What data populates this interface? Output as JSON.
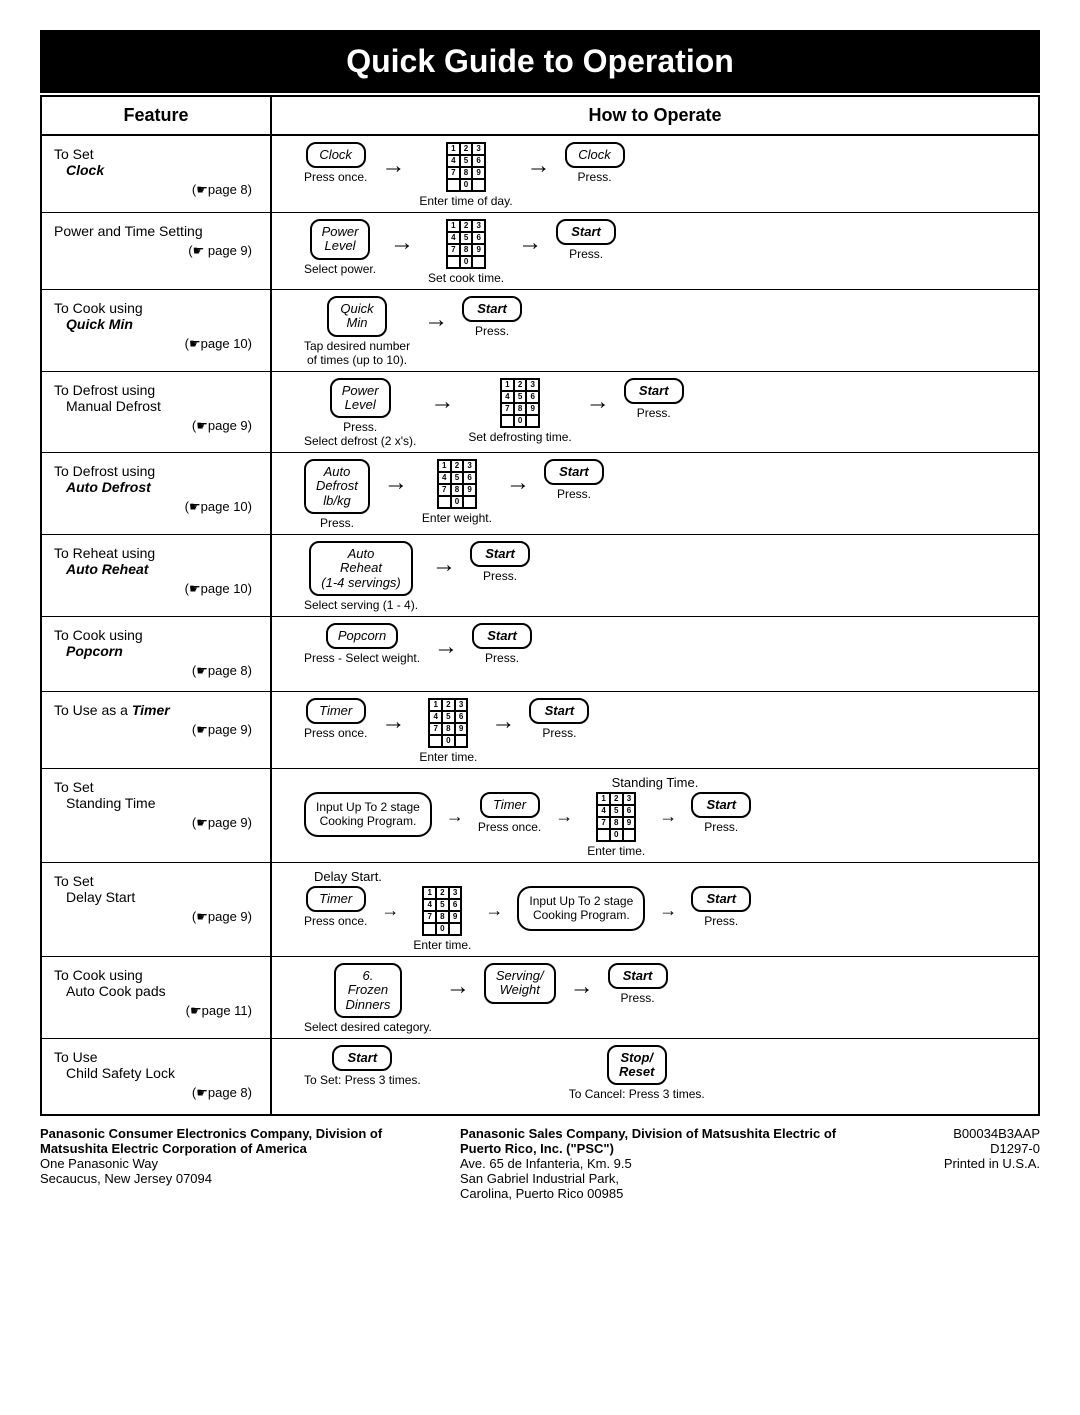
{
  "title": "Quick Guide to Operation",
  "headers": {
    "feature": "Feature",
    "howto": "How to Operate"
  },
  "rows": [
    {
      "feat_pre": "To Set ",
      "feat_bold": "Clock",
      "feat_post": "",
      "page": "page 8",
      "steps": [
        {
          "type": "btn",
          "label": "Clock",
          "caption": "Press once."
        },
        {
          "type": "arrow"
        },
        {
          "type": "keypad",
          "caption": "Enter time of day."
        },
        {
          "type": "arrow"
        },
        {
          "type": "btn",
          "label": "Clock",
          "caption": "Press."
        }
      ]
    },
    {
      "feat_pre": "Power and Time Setting",
      "feat_bold": "",
      "feat_post": "",
      "page": " page 9",
      "steps": [
        {
          "type": "btn",
          "label": "Power\nLevel",
          "caption": "Select power."
        },
        {
          "type": "arrow"
        },
        {
          "type": "keypad",
          "caption": "Set cook time."
        },
        {
          "type": "arrow"
        },
        {
          "type": "btn",
          "label": "Start",
          "bold": true,
          "caption": "Press."
        }
      ]
    },
    {
      "feat_pre": "To Cook using",
      "feat_bold": "Quick Min",
      "feat_post": "",
      "page": "page 10",
      "steps": [
        {
          "type": "btn",
          "label": "Quick\nMin",
          "caption": "Tap desired number\nof times (up to 10)."
        },
        {
          "type": "arrow"
        },
        {
          "type": "btn",
          "label": "Start",
          "bold": true,
          "caption": "Press."
        }
      ]
    },
    {
      "feat_pre": "To Defrost using",
      "feat_bold": "",
      "feat_post": "Manual Defrost",
      "page": "page 9",
      "steps": [
        {
          "type": "btn",
          "label": "Power\nLevel",
          "caption": "Press.\nSelect defrost (2 x's)."
        },
        {
          "type": "arrow"
        },
        {
          "type": "keypad",
          "caption": "Set defrosting time."
        },
        {
          "type": "arrow"
        },
        {
          "type": "btn",
          "label": "Start",
          "bold": true,
          "caption": "Press."
        }
      ]
    },
    {
      "feat_pre": "To Defrost using",
      "feat_bold": "Auto Defrost",
      "feat_post": "",
      "page": "page 10",
      "steps": [
        {
          "type": "btn",
          "label": "Auto\nDefrost\nlb/kg",
          "caption": "Press."
        },
        {
          "type": "arrow"
        },
        {
          "type": "keypad",
          "caption": "Enter weight."
        },
        {
          "type": "arrow"
        },
        {
          "type": "btn",
          "label": "Start",
          "bold": true,
          "caption": "Press."
        }
      ]
    },
    {
      "feat_pre": "To Reheat using",
      "feat_bold": "Auto Reheat",
      "feat_post": "",
      "page": "page 10",
      "steps": [
        {
          "type": "btn",
          "label": "Auto\nReheat\n(1-4 servings)",
          "caption": "Select serving (1 - 4)."
        },
        {
          "type": "arrow"
        },
        {
          "type": "btn",
          "label": "Start",
          "bold": true,
          "caption": "Press."
        }
      ]
    },
    {
      "feat_pre": "To Cook using",
      "feat_bold": "Popcorn",
      "feat_post": "",
      "page": "page 8",
      "steps": [
        {
          "type": "btn",
          "label": "Popcorn",
          "caption": "Press - Select weight."
        },
        {
          "type": "arrow"
        },
        {
          "type": "btn",
          "label": "Start",
          "bold": true,
          "caption": "Press."
        }
      ]
    },
    {
      "feat_pre": "To Use as a ",
      "feat_bold": "Timer",
      "feat_post": "",
      "inline": true,
      "page": "page 9",
      "steps": [
        {
          "type": "btn",
          "label": "Timer",
          "caption": "Press once."
        },
        {
          "type": "arrow"
        },
        {
          "type": "keypad",
          "caption": "Enter time."
        },
        {
          "type": "arrow"
        },
        {
          "type": "btn",
          "label": "Start",
          "bold": true,
          "caption": "Press."
        }
      ]
    },
    {
      "feat_pre": "To Set",
      "feat_bold": "",
      "feat_post": "Standing Time",
      "page": "page 9",
      "section": "Standing Time.",
      "steps": [
        {
          "type": "note",
          "label": "Input Up To 2 stage\nCooking Program."
        },
        {
          "type": "arrow-sm"
        },
        {
          "type": "btn",
          "label": "Timer",
          "caption": "Press once."
        },
        {
          "type": "arrow-sm"
        },
        {
          "type": "keypad",
          "caption": "Enter time."
        },
        {
          "type": "arrow-sm"
        },
        {
          "type": "btn",
          "label": "Start",
          "bold": true,
          "caption": "Press."
        }
      ]
    },
    {
      "feat_pre": "To Set",
      "feat_bold": "",
      "feat_post": "Delay Start",
      "page": "page 9",
      "section": "Delay Start.",
      "steps": [
        {
          "type": "btn",
          "label": "Timer",
          "caption": "Press once."
        },
        {
          "type": "arrow-sm"
        },
        {
          "type": "keypad",
          "caption": "Enter time."
        },
        {
          "type": "arrow-sm"
        },
        {
          "type": "note",
          "label": "Input Up To 2 stage\nCooking Program."
        },
        {
          "type": "arrow-sm"
        },
        {
          "type": "btn",
          "label": "Start",
          "bold": true,
          "caption": "Press."
        }
      ]
    },
    {
      "feat_pre": "To Cook using",
      "feat_bold": "",
      "feat_post": "Auto Cook pads",
      "page": "page 11",
      "steps": [
        {
          "type": "btn",
          "label": "6.\nFrozen\nDinners",
          "caption": "Select desired category."
        },
        {
          "type": "arrow"
        },
        {
          "type": "btn",
          "label": "Serving/\nWeight",
          "caption": ""
        },
        {
          "type": "arrow"
        },
        {
          "type": "btn",
          "label": "Start",
          "bold": true,
          "caption": "Press."
        }
      ]
    },
    {
      "feat_pre": "To Use",
      "feat_bold": "",
      "feat_post": "Child Safety Lock",
      "page": "page 8",
      "steps": [
        {
          "type": "btn",
          "label": "Start",
          "bold": true,
          "caption": "To Set: Press 3 times."
        },
        {
          "type": "spacer"
        },
        {
          "type": "btn",
          "label": "Stop/\nReset",
          "bold": true,
          "caption": "To Cancel: Press 3 times."
        }
      ]
    }
  ],
  "footer": {
    "col1_bold": "Panasonic Consumer Electronics Company, Division of Matsushita Electric Corporation of America",
    "col1_plain": "One Panasonic Way\nSecaucus, New Jersey 07094",
    "col2_bold": "Panasonic Sales Company, Division of Matsushita Electric of Puerto Rico, Inc. (\"PSC\")",
    "col2_plain": "Ave. 65 de Infanteria, Km. 9.5\nSan Gabriel Industrial Park,\nCarolina, Puerto Rico 00985",
    "col3": "B00034B3AAP\nD1297-0\nPrinted in U.S.A."
  }
}
